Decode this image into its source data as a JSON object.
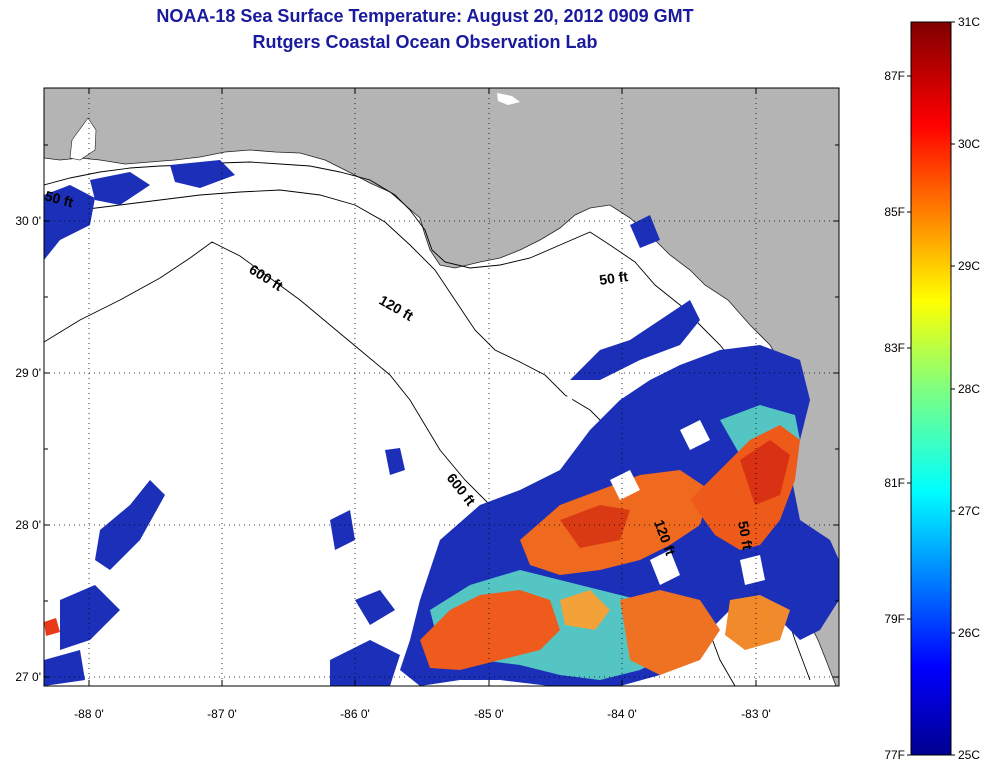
{
  "title_line1": "NOAA-18 Sea Surface Temperature:  August 20, 2012 0909 GMT",
  "title_line2": "Rutgers Coastal Ocean Observation Lab",
  "map": {
    "lat_labels": [
      "30 0'",
      "29 0'",
      "28 0'",
      "27 0'"
    ],
    "lon_labels": [
      "-88 0'",
      "-87 0'",
      "-86 0'",
      "-85 0'",
      "-84 0'",
      "-83 0'"
    ],
    "contours": [
      "50 ft",
      "600 ft",
      "120 ft",
      "50 ft",
      "600 ft",
      "120 ft",
      "50 ft"
    ],
    "land_color": "#b4b4b4",
    "water_color": "#ffffff"
  },
  "colorbar": {
    "fahrenheit": [
      "87F",
      "85F",
      "83F",
      "81F",
      "79F",
      "77F"
    ],
    "celsius": [
      "31C",
      "30C",
      "29C",
      "28C",
      "27C",
      "26C",
      "25C"
    ]
  }
}
